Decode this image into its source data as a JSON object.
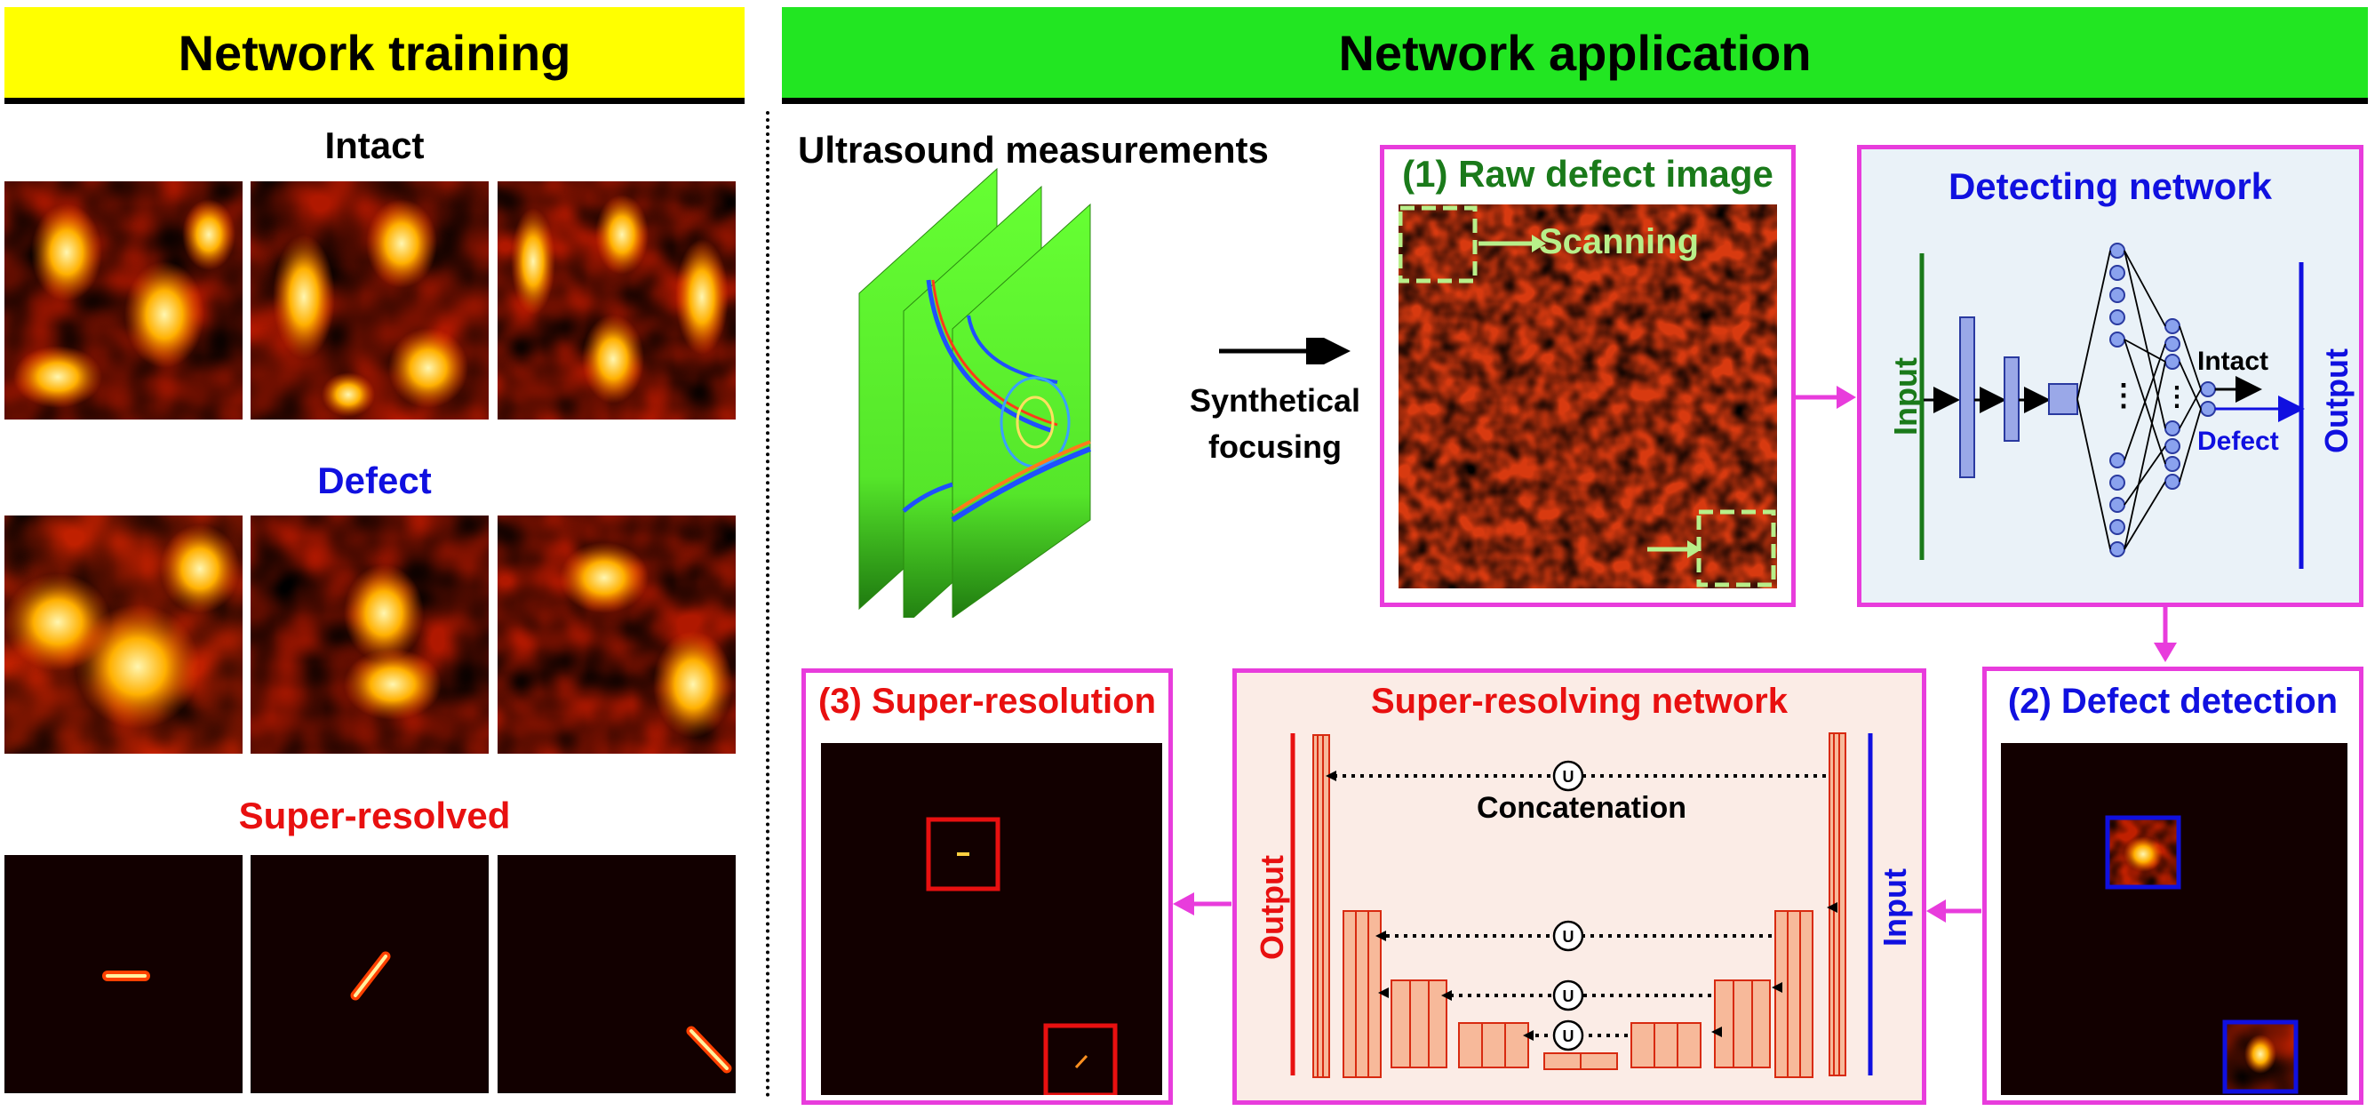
{
  "left_panel": {
    "banner": "Network training",
    "intact_label": "Intact",
    "defect_label": "Defect",
    "superres_label": "Super-resolved"
  },
  "right_panel": {
    "banner": "Network application",
    "ultrasound_label": "Ultrasound measurements",
    "synth_line1": "Synthetical",
    "synth_line2": "focusing",
    "raw_title": "(1) Raw defect image",
    "scanning": "Scanning",
    "detecting": {
      "title": "Detecting network",
      "input": "Input",
      "output": "Output",
      "intact": "Intact",
      "defect": "Defect",
      "dots": "..."
    },
    "detection_title": "(2) Defect detection",
    "superres_net": {
      "title": "Super-resolving network",
      "concat": "Concatenation",
      "input": "Input",
      "output": "Output",
      "u": "U"
    },
    "superres_title": "(3) Super-resolution"
  },
  "colors": {
    "yellow_banner": "#ffff00",
    "green_banner": "#22e622",
    "magenta": "#e83cdc",
    "dark_green": "#1a7a1a",
    "blue": "#1010e0",
    "red": "#e81010",
    "light_green": "#b8ef8a"
  }
}
